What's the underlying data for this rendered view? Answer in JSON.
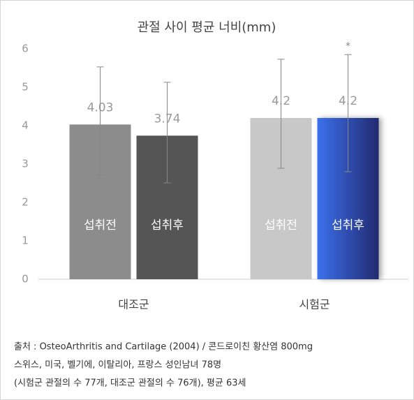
{
  "chart_data": {
    "type": "bar",
    "title": "관절 사이 평균 너비(mm)",
    "categories": [
      "대조군",
      "시험군"
    ],
    "series": [
      {
        "name": "섭취전",
        "colors": [
          "#8c8c8c",
          "#c8c8c8"
        ],
        "values": [
          4.03,
          4.2
        ],
        "error_low": [
          2.72,
          2.89
        ],
        "error_high": [
          5.53,
          5.73
        ]
      },
      {
        "name": "섭취후",
        "colors": [
          "#555555",
          "#2f5fd8"
        ],
        "values": [
          3.74,
          4.2
        ],
        "error_low": [
          2.51,
          2.8
        ],
        "error_high": [
          5.13,
          5.85
        ]
      }
    ],
    "annotation": "*",
    "ylim": [
      0,
      6
    ],
    "yticks": [
      0,
      1,
      2,
      3,
      4,
      5,
      6
    ],
    "grid": false,
    "footnotes": [
      "출처 : OsteoArthritis and Cartilage (2004) / 콘드로이친 황산염 800mg",
      "스위스, 미국, 벨기에, 이탈리아, 프랑스 성인남녀 78명",
      "(시험군 관절의 수 77개, 대조군 관절의 수 76개), 평균 63세"
    ]
  }
}
